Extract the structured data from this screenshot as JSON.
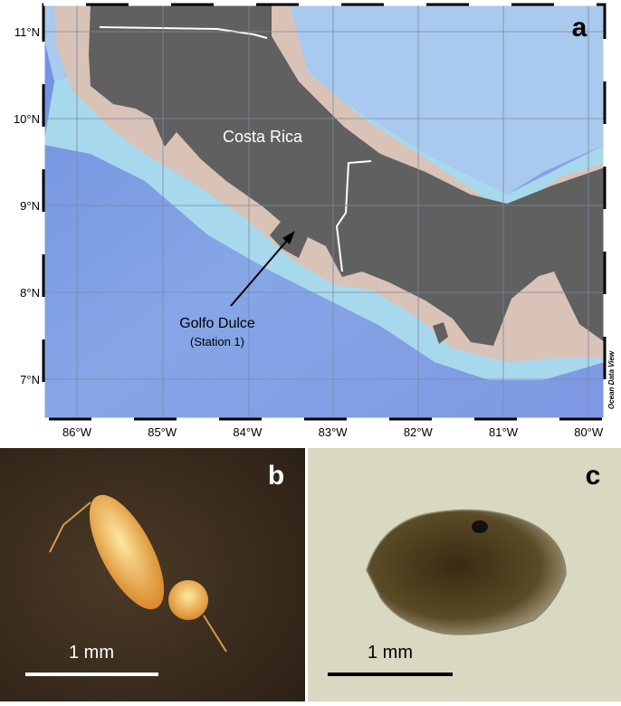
{
  "map": {
    "panel_label": "a",
    "lat_labels": [
      "11°N",
      "10°N",
      "9°N",
      "8°N",
      "7°N"
    ],
    "lon_labels": [
      "86°W",
      "85°W",
      "84°W",
      "83°W",
      "82°W",
      "81°W",
      "80°W"
    ],
    "country_label": "Costa Rica",
    "site_label": "Golfo Dulce",
    "station_label": "(Station 1)",
    "credit": "Ocean Data View"
  },
  "photo_b": {
    "panel_label": "b",
    "scale_label": "1 mm"
  },
  "photo_c": {
    "panel_label": "c",
    "scale_label": "1 mm"
  }
}
